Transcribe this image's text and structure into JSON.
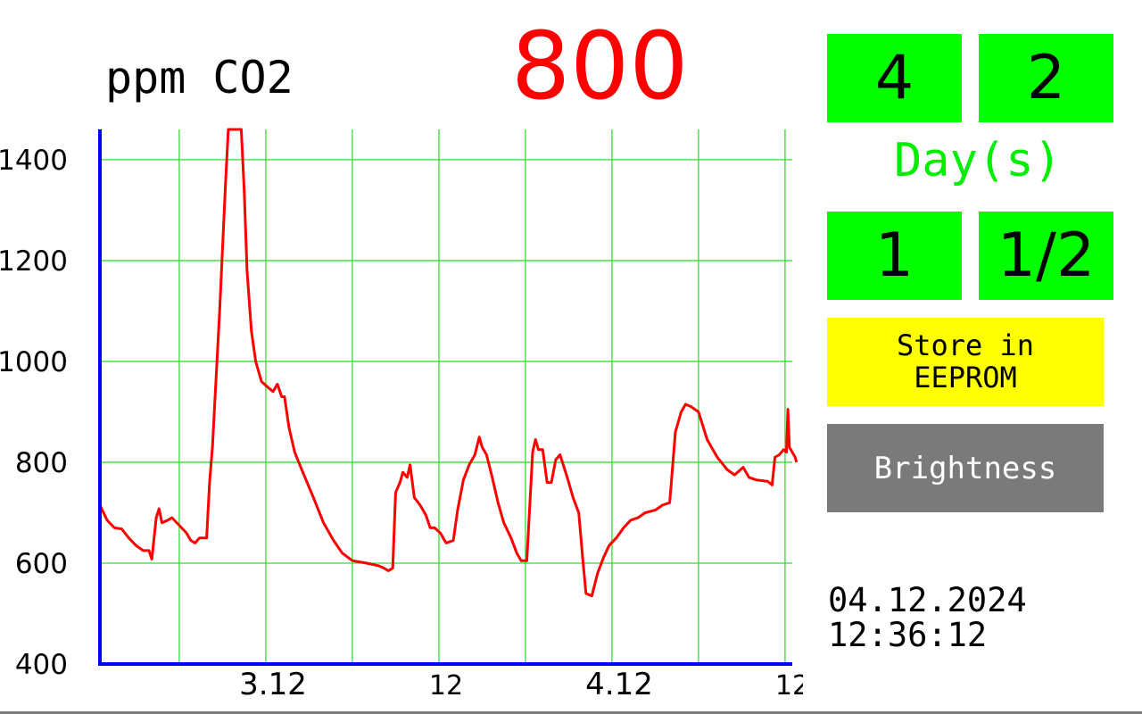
{
  "header": {
    "unit_label": "ppm CO2",
    "current_value": "800"
  },
  "controls": {
    "btn_a": "4",
    "btn_b": "2",
    "days_label": "Day(s)",
    "btn_c": "1",
    "btn_d": "1/2",
    "store_line1": "Store in",
    "store_line2": "EEPROM",
    "brightness": "Brightness"
  },
  "datetime": {
    "date": "04.12.2024",
    "time": "12:36:12"
  },
  "colors": {
    "line": "#ff0000",
    "grid": "#33dd33",
    "axis": "#0000ff",
    "button_green": "#00ff00",
    "button_yellow": "#ffff00",
    "button_gray": "#787b78"
  },
  "chart_data": {
    "type": "line",
    "ylabel": "",
    "xlabel": "",
    "ylim": [
      400,
      1460
    ],
    "xlim": [
      0,
      48
    ],
    "y_ticks": [
      400,
      600,
      800,
      1000,
      1200,
      1400
    ],
    "x_ticks": [
      {
        "x": 12,
        "label": "3.12"
      },
      {
        "x": 24,
        "label": "12"
      },
      {
        "x": 36,
        "label": "4.12"
      },
      {
        "x": 48,
        "label": "12"
      }
    ],
    "x_grid": [
      5.5,
      11.5,
      17.5,
      23.5,
      29.5,
      35.5,
      41.5,
      47.5
    ],
    "grid": true,
    "series": [
      {
        "values": [
          [
            0.0,
            715
          ],
          [
            0.5,
            685
          ],
          [
            1.0,
            670
          ],
          [
            1.5,
            668
          ],
          [
            2.0,
            650
          ],
          [
            2.5,
            635
          ],
          [
            3.0,
            625
          ],
          [
            3.4,
            625
          ],
          [
            3.6,
            608
          ],
          [
            3.9,
            690
          ],
          [
            4.1,
            708
          ],
          [
            4.3,
            680
          ],
          [
            4.7,
            685
          ],
          [
            5.0,
            690
          ],
          [
            5.5,
            675
          ],
          [
            6.0,
            660
          ],
          [
            6.3,
            645
          ],
          [
            6.6,
            640
          ],
          [
            6.9,
            650
          ],
          [
            7.4,
            650
          ],
          [
            7.6,
            760
          ],
          [
            7.8,
            830
          ],
          [
            8.3,
            1100
          ],
          [
            8.7,
            1350
          ],
          [
            8.9,
            1460
          ],
          [
            9.5,
            1460
          ],
          [
            9.8,
            1460
          ],
          [
            10.0,
            1340
          ],
          [
            10.2,
            1180
          ],
          [
            10.5,
            1060
          ],
          [
            10.8,
            1000
          ],
          [
            11.2,
            960
          ],
          [
            11.6,
            950
          ],
          [
            12.0,
            940
          ],
          [
            12.3,
            955
          ],
          [
            12.6,
            930
          ],
          [
            12.8,
            930
          ],
          [
            13.1,
            870
          ],
          [
            13.5,
            820
          ],
          [
            14.0,
            785
          ],
          [
            14.8,
            730
          ],
          [
            15.5,
            680
          ],
          [
            16.2,
            645
          ],
          [
            16.8,
            620
          ],
          [
            17.5,
            605
          ],
          [
            18.5,
            600
          ],
          [
            19.3,
            595
          ],
          [
            19.7,
            590
          ],
          [
            20.0,
            585
          ],
          [
            20.3,
            590
          ],
          [
            20.5,
            740
          ],
          [
            20.8,
            760
          ],
          [
            21.0,
            780
          ],
          [
            21.3,
            770
          ],
          [
            21.5,
            795
          ],
          [
            21.8,
            730
          ],
          [
            22.2,
            715
          ],
          [
            22.6,
            695
          ],
          [
            22.9,
            670
          ],
          [
            23.2,
            670
          ],
          [
            23.6,
            660
          ],
          [
            24.0,
            640
          ],
          [
            24.5,
            645
          ],
          [
            24.8,
            705
          ],
          [
            25.2,
            765
          ],
          [
            25.6,
            795
          ],
          [
            26.0,
            815
          ],
          [
            26.3,
            850
          ],
          [
            26.5,
            830
          ],
          [
            26.8,
            815
          ],
          [
            27.2,
            770
          ],
          [
            27.6,
            720
          ],
          [
            28.0,
            680
          ],
          [
            28.5,
            650
          ],
          [
            28.9,
            620
          ],
          [
            29.2,
            605
          ],
          [
            29.6,
            605
          ],
          [
            30.0,
            820
          ],
          [
            30.2,
            845
          ],
          [
            30.4,
            825
          ],
          [
            30.7,
            825
          ],
          [
            31.0,
            760
          ],
          [
            31.3,
            760
          ],
          [
            31.6,
            805
          ],
          [
            31.9,
            815
          ],
          [
            32.4,
            770
          ],
          [
            32.8,
            730
          ],
          [
            33.2,
            700
          ],
          [
            33.5,
            600
          ],
          [
            33.7,
            540
          ],
          [
            34.1,
            535
          ],
          [
            34.5,
            580
          ],
          [
            34.9,
            610
          ],
          [
            35.3,
            635
          ],
          [
            35.8,
            650
          ],
          [
            36.3,
            670
          ],
          [
            36.8,
            685
          ],
          [
            37.3,
            690
          ],
          [
            37.8,
            700
          ],
          [
            38.5,
            705
          ],
          [
            39.0,
            715
          ],
          [
            39.5,
            720
          ],
          [
            39.9,
            860
          ],
          [
            40.3,
            900
          ],
          [
            40.6,
            915
          ],
          [
            41.0,
            910
          ],
          [
            41.5,
            900
          ],
          [
            42.1,
            845
          ],
          [
            42.8,
            810
          ],
          [
            43.5,
            785
          ],
          [
            44.0,
            775
          ],
          [
            44.6,
            790
          ],
          [
            45.0,
            770
          ],
          [
            45.5,
            765
          ],
          [
            46.3,
            762
          ],
          [
            46.6,
            755
          ],
          [
            46.8,
            810
          ],
          [
            47.1,
            815
          ],
          [
            47.4,
            825
          ],
          [
            47.6,
            820
          ],
          [
            47.7,
            905
          ],
          [
            47.8,
            830
          ],
          [
            48.0,
            820
          ],
          [
            48.2,
            810
          ],
          [
            48.3,
            800
          ]
        ]
      }
    ]
  }
}
